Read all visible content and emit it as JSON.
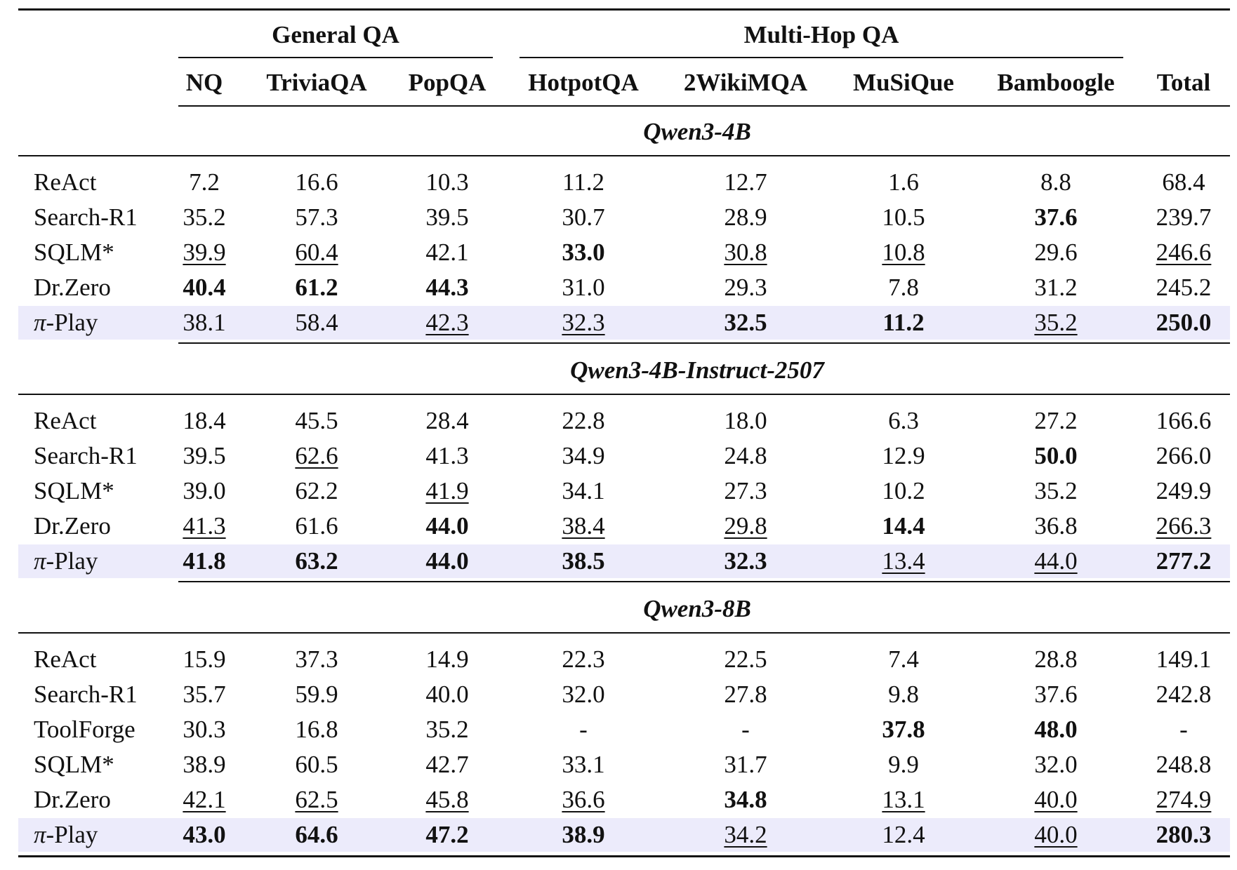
{
  "group_headers": [
    "General QA",
    "Multi-Hop QA"
  ],
  "columns": [
    "NQ",
    "TriviaQA",
    "PopQA",
    "HotpotQA",
    "2WikiMQA",
    "MuSiQue",
    "Bamboogle",
    "Total"
  ],
  "sections": [
    {
      "title": "Qwen3-4B",
      "rows": [
        {
          "method": "ReAct",
          "highlight": false,
          "cells": [
            {
              "v": "7.2"
            },
            {
              "v": "16.6"
            },
            {
              "v": "10.3"
            },
            {
              "v": "11.2"
            },
            {
              "v": "12.7"
            },
            {
              "v": "1.6"
            },
            {
              "v": "8.8"
            },
            {
              "v": "68.4"
            }
          ]
        },
        {
          "method": "Search-R1",
          "highlight": false,
          "cells": [
            {
              "v": "35.2"
            },
            {
              "v": "57.3"
            },
            {
              "v": "39.5"
            },
            {
              "v": "30.7"
            },
            {
              "v": "28.9"
            },
            {
              "v": "10.5"
            },
            {
              "v": "37.6",
              "s": "b"
            },
            {
              "v": "239.7"
            }
          ]
        },
        {
          "method": "SQLM*",
          "highlight": false,
          "cells": [
            {
              "v": "39.9",
              "s": "u"
            },
            {
              "v": "60.4",
              "s": "u"
            },
            {
              "v": "42.1"
            },
            {
              "v": "33.0",
              "s": "b"
            },
            {
              "v": "30.8",
              "s": "u"
            },
            {
              "v": "10.8",
              "s": "u"
            },
            {
              "v": "29.6"
            },
            {
              "v": "246.6",
              "s": "u"
            }
          ]
        },
        {
          "method": "Dr.Zero",
          "highlight": false,
          "cells": [
            {
              "v": "40.4",
              "s": "b"
            },
            {
              "v": "61.2",
              "s": "b"
            },
            {
              "v": "44.3",
              "s": "b"
            },
            {
              "v": "31.0"
            },
            {
              "v": "29.3"
            },
            {
              "v": "7.8"
            },
            {
              "v": "31.2"
            },
            {
              "v": "245.2"
            }
          ]
        },
        {
          "method": "π-Play",
          "highlight": true,
          "cells": [
            {
              "v": "38.1"
            },
            {
              "v": "58.4"
            },
            {
              "v": "42.3",
              "s": "u"
            },
            {
              "v": "32.3",
              "s": "u"
            },
            {
              "v": "32.5",
              "s": "b"
            },
            {
              "v": "11.2",
              "s": "b"
            },
            {
              "v": "35.2",
              "s": "u"
            },
            {
              "v": "250.0",
              "s": "b"
            }
          ]
        }
      ]
    },
    {
      "title": "Qwen3-4B-Instruct-2507",
      "rows": [
        {
          "method": "ReAct",
          "highlight": false,
          "cells": [
            {
              "v": "18.4"
            },
            {
              "v": "45.5"
            },
            {
              "v": "28.4"
            },
            {
              "v": "22.8"
            },
            {
              "v": "18.0"
            },
            {
              "v": "6.3"
            },
            {
              "v": "27.2"
            },
            {
              "v": "166.6"
            }
          ]
        },
        {
          "method": "Search-R1",
          "highlight": false,
          "cells": [
            {
              "v": "39.5"
            },
            {
              "v": "62.6",
              "s": "u"
            },
            {
              "v": "41.3"
            },
            {
              "v": "34.9"
            },
            {
              "v": "24.8"
            },
            {
              "v": "12.9"
            },
            {
              "v": "50.0",
              "s": "b"
            },
            {
              "v": "266.0"
            }
          ]
        },
        {
          "method": "SQLM*",
          "highlight": false,
          "cells": [
            {
              "v": "39.0"
            },
            {
              "v": "62.2"
            },
            {
              "v": "41.9",
              "s": "u"
            },
            {
              "v": "34.1"
            },
            {
              "v": "27.3"
            },
            {
              "v": "10.2"
            },
            {
              "v": "35.2"
            },
            {
              "v": "249.9"
            }
          ]
        },
        {
          "method": "Dr.Zero",
          "highlight": false,
          "cells": [
            {
              "v": "41.3",
              "s": "u"
            },
            {
              "v": "61.6"
            },
            {
              "v": "44.0",
              "s": "b"
            },
            {
              "v": "38.4",
              "s": "u"
            },
            {
              "v": "29.8",
              "s": "u"
            },
            {
              "v": "14.4",
              "s": "b"
            },
            {
              "v": "36.8"
            },
            {
              "v": "266.3",
              "s": "u"
            }
          ]
        },
        {
          "method": "π-Play",
          "highlight": true,
          "cells": [
            {
              "v": "41.8",
              "s": "b"
            },
            {
              "v": "63.2",
              "s": "b"
            },
            {
              "v": "44.0",
              "s": "b"
            },
            {
              "v": "38.5",
              "s": "b"
            },
            {
              "v": "32.3",
              "s": "b"
            },
            {
              "v": "13.4",
              "s": "u"
            },
            {
              "v": "44.0",
              "s": "u"
            },
            {
              "v": "277.2",
              "s": "b"
            }
          ]
        }
      ]
    },
    {
      "title": "Qwen3-8B",
      "rows": [
        {
          "method": "ReAct",
          "highlight": false,
          "cells": [
            {
              "v": "15.9"
            },
            {
              "v": "37.3"
            },
            {
              "v": "14.9"
            },
            {
              "v": "22.3"
            },
            {
              "v": "22.5"
            },
            {
              "v": "7.4"
            },
            {
              "v": "28.8"
            },
            {
              "v": "149.1"
            }
          ]
        },
        {
          "method": "Search-R1",
          "highlight": false,
          "cells": [
            {
              "v": "35.7"
            },
            {
              "v": "59.9"
            },
            {
              "v": "40.0"
            },
            {
              "v": "32.0"
            },
            {
              "v": "27.8"
            },
            {
              "v": "9.8"
            },
            {
              "v": "37.6"
            },
            {
              "v": "242.8"
            }
          ]
        },
        {
          "method": "ToolForge",
          "highlight": false,
          "cells": [
            {
              "v": "30.3"
            },
            {
              "v": "16.8"
            },
            {
              "v": "35.2"
            },
            {
              "v": "-"
            },
            {
              "v": "-"
            },
            {
              "v": "37.8",
              "s": "b"
            },
            {
              "v": "48.0",
              "s": "b"
            },
            {
              "v": "-"
            }
          ]
        },
        {
          "method": "SQLM*",
          "highlight": false,
          "cells": [
            {
              "v": "38.9"
            },
            {
              "v": "60.5"
            },
            {
              "v": "42.7"
            },
            {
              "v": "33.1"
            },
            {
              "v": "31.7"
            },
            {
              "v": "9.9"
            },
            {
              "v": "32.0"
            },
            {
              "v": "248.8"
            }
          ]
        },
        {
          "method": "Dr.Zero",
          "highlight": false,
          "cells": [
            {
              "v": "42.1",
              "s": "u"
            },
            {
              "v": "62.5",
              "s": "u"
            },
            {
              "v": "45.8",
              "s": "u"
            },
            {
              "v": "36.6",
              "s": "u"
            },
            {
              "v": "34.8",
              "s": "b"
            },
            {
              "v": "13.1",
              "s": "u"
            },
            {
              "v": "40.0",
              "s": "u"
            },
            {
              "v": "274.9",
              "s": "u"
            }
          ]
        },
        {
          "method": "π-Play",
          "highlight": true,
          "cells": [
            {
              "v": "43.0",
              "s": "b"
            },
            {
              "v": "64.6",
              "s": "b"
            },
            {
              "v": "47.2",
              "s": "b"
            },
            {
              "v": "38.9",
              "s": "b"
            },
            {
              "v": "34.2",
              "s": "u"
            },
            {
              "v": "12.4"
            },
            {
              "v": "40.0",
              "s": "u"
            },
            {
              "v": "280.3",
              "s": "b"
            }
          ]
        }
      ]
    }
  ],
  "colors": {
    "highlight_row": "#ecebfb",
    "text": "#111111"
  }
}
